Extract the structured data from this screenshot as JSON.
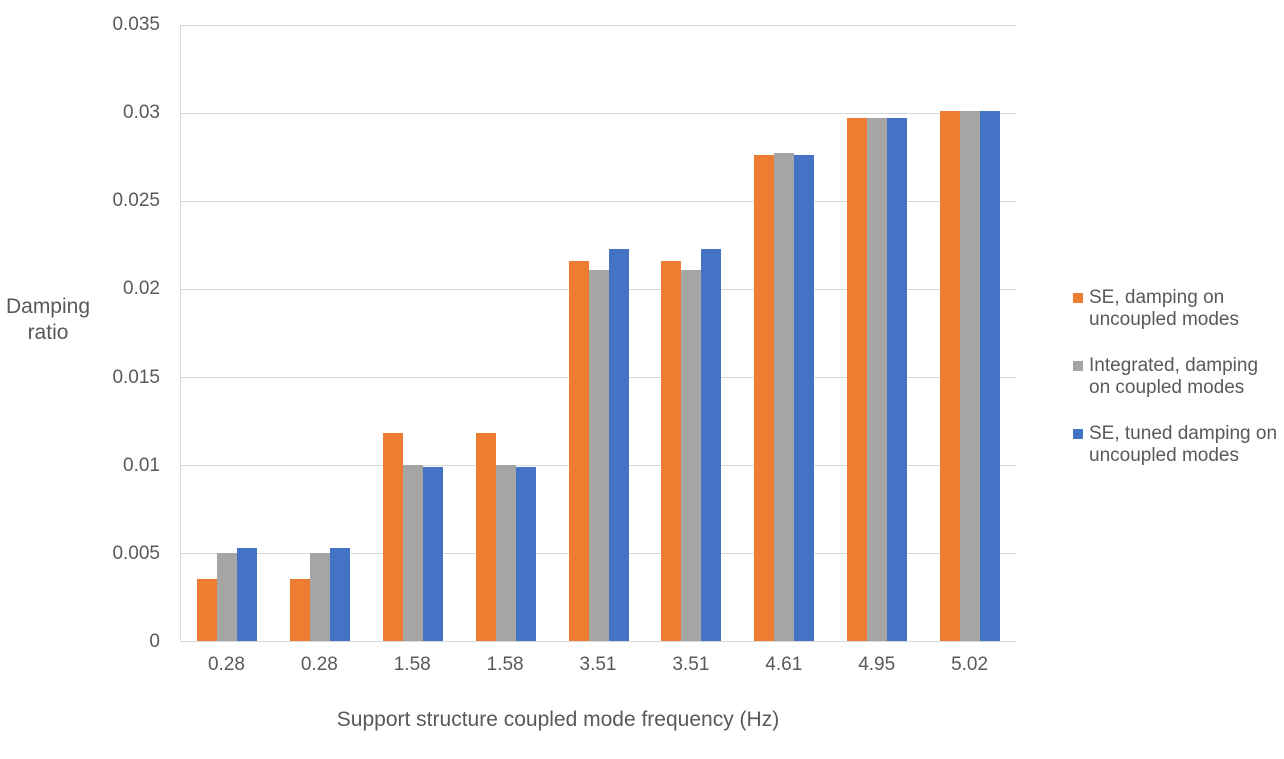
{
  "chart_data": {
    "type": "bar",
    "title": "",
    "categories": [
      "0.28",
      "0.28",
      "1.58",
      "1.58",
      "3.51",
      "3.51",
      "4.61",
      "4.95",
      "5.02"
    ],
    "series": [
      {
        "name": "SE, damping on uncoupled modes",
        "color": "#ED7D31",
        "values": [
          0.0035,
          0.0035,
          0.0118,
          0.0118,
          0.0216,
          0.0216,
          0.0276,
          0.0297,
          0.0301
        ]
      },
      {
        "name": "Integrated, damping on coupled modes",
        "color": "#A5A5A5",
        "values": [
          0.005,
          0.005,
          0.01,
          0.01,
          0.0211,
          0.0211,
          0.0277,
          0.0297,
          0.0301
        ]
      },
      {
        "name": "SE, tuned damping on uncoupled modes",
        "color": "#4472C4",
        "values": [
          0.0053,
          0.0053,
          0.0099,
          0.0099,
          0.0223,
          0.0223,
          0.0276,
          0.0297,
          0.0301
        ]
      }
    ],
    "xlabel": "Support structure coupled mode frequency (Hz)",
    "ylabel": "Damping ratio",
    "ylim": [
      0,
      0.035
    ],
    "ytick_values": [
      0.035,
      0.03,
      0.025,
      0.02,
      0.015,
      0.01,
      0.005,
      0
    ],
    "ytick_labels": [
      "0.035",
      "0.03",
      "0.025",
      "0.02",
      "0.015",
      "0.01",
      "0.005",
      "0"
    ],
    "grid": true,
    "legend_position": "right"
  },
  "colors": {
    "text": "#595959",
    "gridline": "#D9D9D9",
    "background": "#FFFFFF"
  }
}
